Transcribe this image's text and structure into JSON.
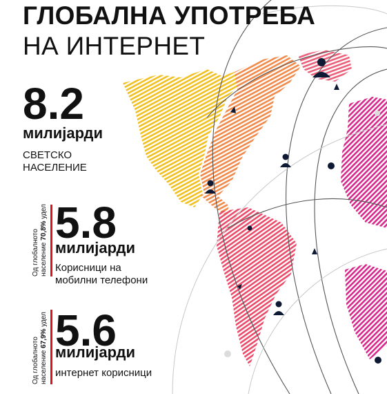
{
  "title": {
    "line1": "ГЛОБАЛНА УПОТРЕБА",
    "line2": "НА ИНТЕРНЕТ"
  },
  "stats": [
    {
      "number": "8.2",
      "unit": "милијарди",
      "desc_line1": "СВЕТСКО",
      "desc_line2": "НАСЕЛЕНИЕ"
    },
    {
      "number": "5.8",
      "unit": "милијарди",
      "desc_line1": "Корисници на",
      "desc_line2": "мобилни телефони",
      "side_line1": "Од глобалното",
      "side_line2_prefix": "население ",
      "side_bold": "70,8%",
      "side_suffix": " удел"
    },
    {
      "number": "5.6",
      "unit": "милијарди",
      "desc_line1": "интернет корисници",
      "side_line1": "Од глобалното",
      "side_line2_prefix": "население ",
      "side_bold": "67,9%",
      "side_suffix": " удел"
    }
  ],
  "colors": {
    "accent_red": "#d8141e",
    "north_america": "#f0c020",
    "south_america": "#e8436a",
    "europe": "#d9297a"
  },
  "icons": [
    "person-icon",
    "node-dot-icon",
    "arrow-icon"
  ]
}
